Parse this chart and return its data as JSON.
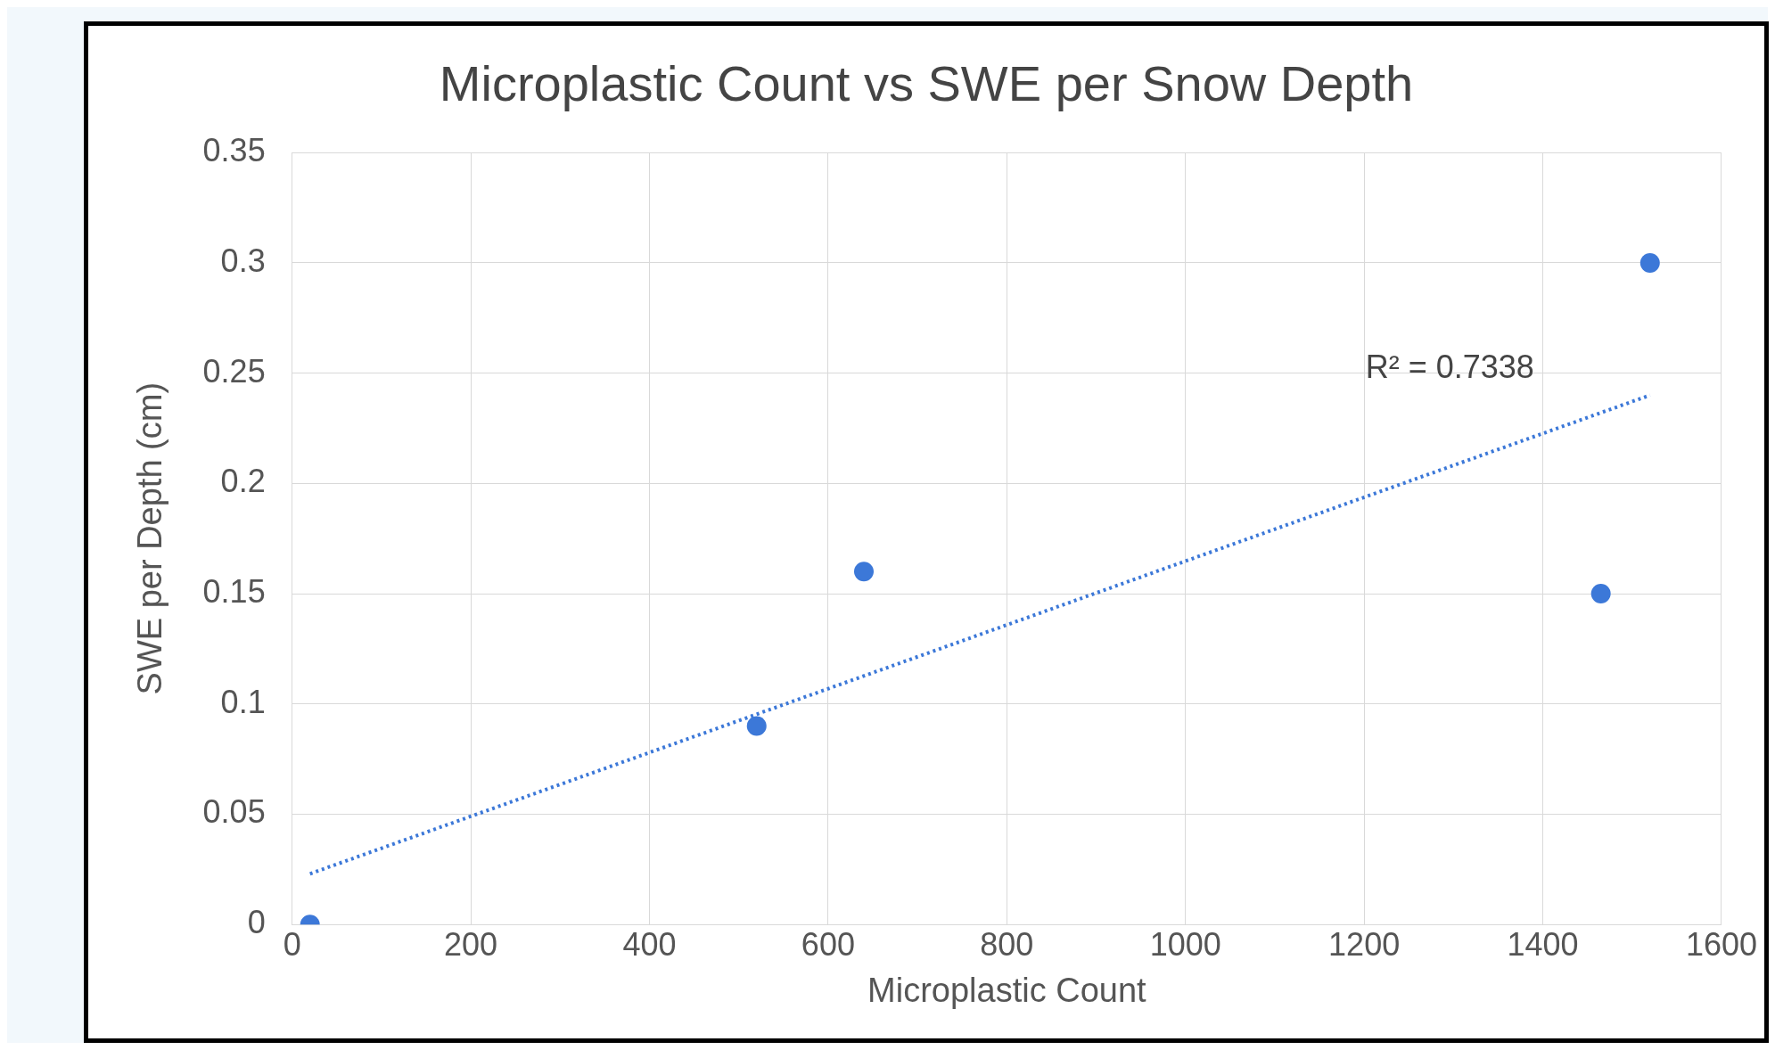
{
  "chart_data": {
    "type": "scatter",
    "title": "Microplastic Count vs SWE per Snow Depth",
    "xlabel": "Microplastic Count",
    "ylabel": "SWE per Depth (cm)",
    "series": [
      {
        "color": "#3c78d8",
        "x": [
          20,
          520,
          640,
          1465,
          1520
        ],
        "values": [
          0,
          0.09,
          0.16,
          0.15,
          0.3
        ]
      },
      {
        "type": "line",
        "line_style": "dotted",
        "marker": "none",
        "color": "#3c78d8",
        "x": [
          20,
          1520
        ],
        "values": [
          0.023,
          0.24
        ]
      }
    ],
    "annotations": [
      "R² = 0.7338"
    ],
    "xlim": [
      0,
      1600
    ],
    "xticks": [
      0,
      200,
      400,
      600,
      800,
      1000,
      1200,
      1400,
      1600
    ],
    "ylim": [
      0,
      0.35
    ],
    "yticks": [
      0,
      0.05,
      0.1,
      0.15,
      0.2,
      0.25,
      0.3,
      0.35
    ],
    "grid": true,
    "legend": false,
    "marker": "circle"
  }
}
